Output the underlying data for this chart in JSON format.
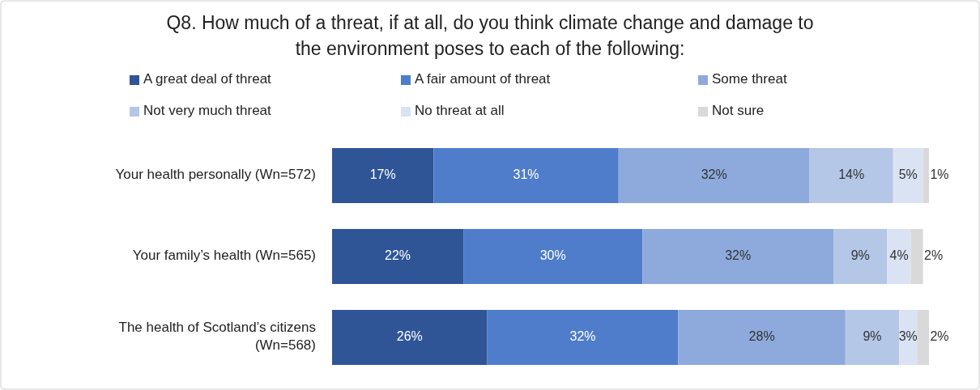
{
  "chart_data": {
    "type": "bar",
    "orientation": "horizontal",
    "stacked": true,
    "title": "Q8. How much of a threat, if at all, do you think climate change and damage to the environment poses to each of the following:",
    "categories": [
      "Your health personally (Wn=572)",
      "Your family’s health (Wn=565)",
      "The health of Scotland’s citizens (Wn=568)"
    ],
    "legend": "top",
    "series": [
      {
        "name": "A great deal of threat",
        "color": "#2f5597",
        "values": [
          17,
          22,
          26
        ],
        "value_labels": [
          "17%",
          "22%",
          "26%"
        ]
      },
      {
        "name": "A fair amount of threat",
        "color": "#4f7dcb",
        "values": [
          31,
          30,
          32
        ],
        "value_labels": [
          "31%",
          "30%",
          "32%"
        ]
      },
      {
        "name": "Some threat",
        "color": "#8eaadc",
        "values": [
          32,
          32,
          28
        ],
        "value_labels": [
          "32%",
          "32%",
          "28%"
        ]
      },
      {
        "name": "Not very much threat",
        "color": "#b4c7e7",
        "values": [
          14,
          9,
          9
        ],
        "value_labels": [
          "14%",
          "9%",
          "9%"
        ]
      },
      {
        "name": "No threat at all",
        "color": "#dae3f3",
        "values": [
          5,
          4,
          3
        ],
        "value_labels": [
          "5%",
          "4%",
          "3%"
        ]
      },
      {
        "name": "Not sure",
        "color": "#d9d9d9",
        "values": [
          1,
          2,
          2
        ],
        "value_labels": [
          "1%",
          "2%",
          "2%"
        ]
      }
    ]
  }
}
